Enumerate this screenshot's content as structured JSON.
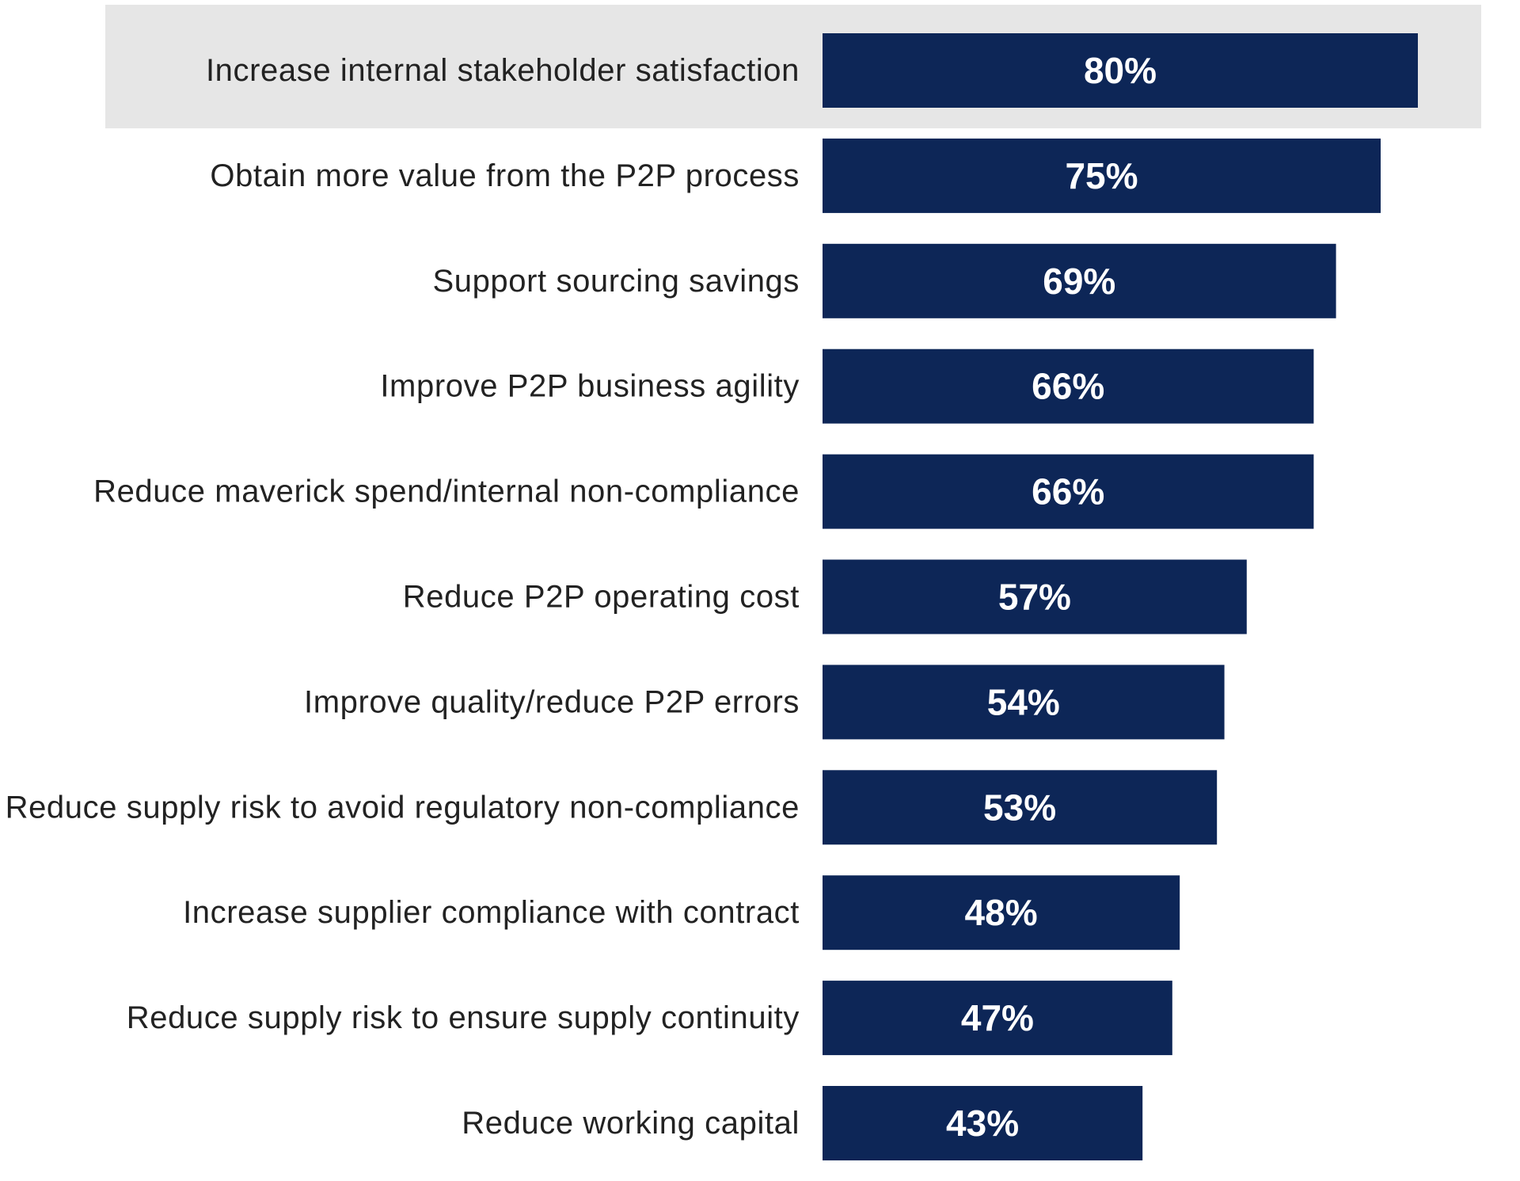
{
  "chart_data": {
    "type": "bar",
    "orientation": "horizontal",
    "title": "",
    "xlabel": "",
    "ylabel": "",
    "xlim": [
      0,
      100
    ],
    "grid": false,
    "highlighted_category": "Increase internal stakeholder satisfaction",
    "colors": {
      "bar": "#0d2657",
      "highlight_background": "#e6e6e6",
      "label_text": "#222222",
      "value_text": "#ffffff"
    },
    "categories": [
      "Increase internal stakeholder satisfaction",
      "Obtain more value from the P2P process",
      "Support sourcing savings",
      "Improve P2P business agility",
      "Reduce maverick spend/internal non-compliance",
      "Reduce P2P operating cost",
      "Improve quality/reduce P2P errors",
      "Reduce supply risk to avoid regulatory non-compliance",
      "Increase supplier compliance with contract",
      "Reduce supply risk to ensure supply continuity",
      "Reduce working capital"
    ],
    "values": [
      80,
      75,
      69,
      66,
      66,
      57,
      54,
      53,
      48,
      47,
      43
    ],
    "value_labels": [
      "80%",
      "75%",
      "69%",
      "66%",
      "66%",
      "57%",
      "54%",
      "53%",
      "48%",
      "47%",
      "43%"
    ]
  }
}
